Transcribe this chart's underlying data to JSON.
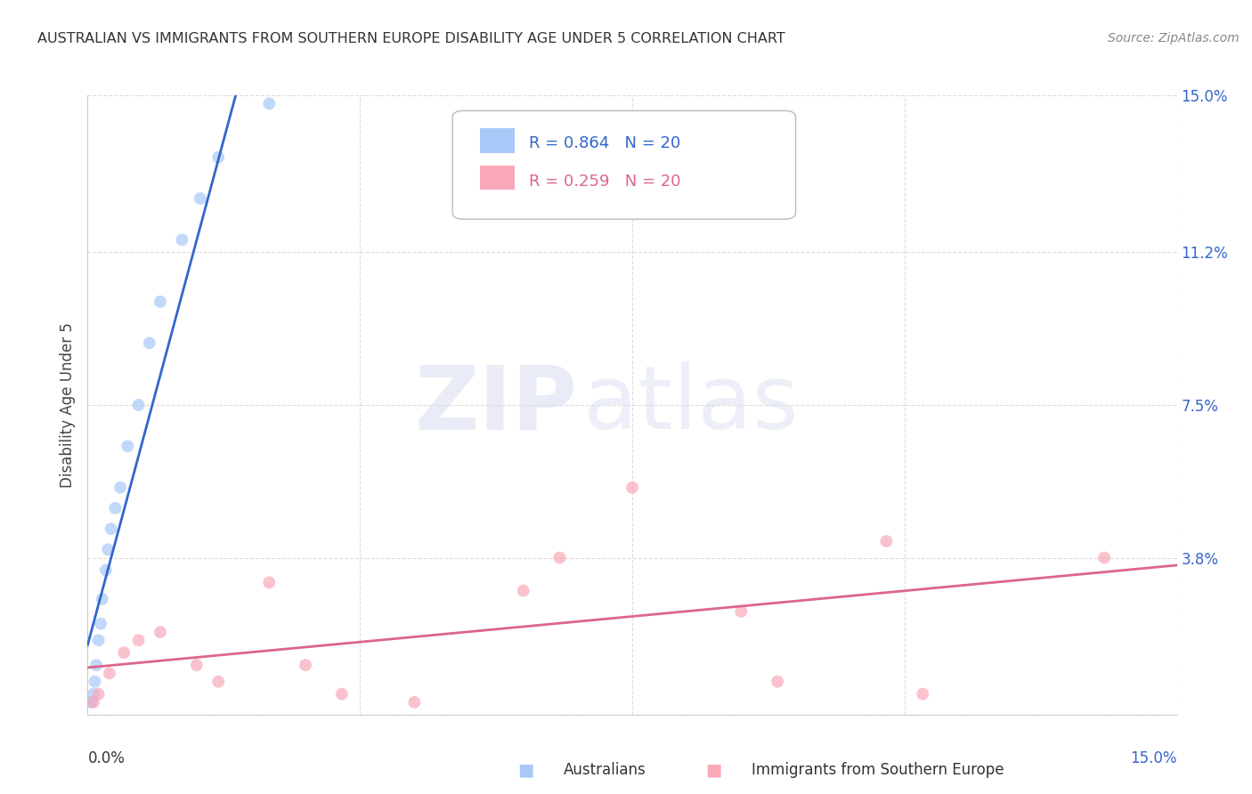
{
  "title": "AUSTRALIAN VS IMMIGRANTS FROM SOUTHERN EUROPE DISABILITY AGE UNDER 5 CORRELATION CHART",
  "source": "Source: ZipAtlas.com",
  "ylabel": "Disability Age Under 5",
  "watermark_zip": "ZIP",
  "watermark_atlas": "atlas",
  "xlim": [
    0.0,
    15.0
  ],
  "ylim": [
    0.0,
    15.0
  ],
  "yticks": [
    0.0,
    3.8,
    7.5,
    11.2,
    15.0
  ],
  "ytick_labels": [
    "",
    "3.8%",
    "7.5%",
    "11.2%",
    "15.0%"
  ],
  "xtick_vals": [
    0.0,
    3.75,
    7.5,
    11.25,
    15.0
  ],
  "grid_color": "#dddddd",
  "background_color": "#ffffff",
  "australians_color": "#a8c8f8",
  "immigrants_color": "#f8a8b8",
  "trendline_aus_color": "#3366cc",
  "trendline_imm_color": "#dd6688",
  "legend_aus_text": "R = 0.864   N = 20",
  "legend_imm_text": "R = 0.259   N = 20",
  "legend_aus_color": "#3366cc",
  "legend_imm_color": "#dd6688",
  "aus_x": [
    0.05,
    0.08,
    0.1,
    0.12,
    0.15,
    0.18,
    0.2,
    0.25,
    0.28,
    0.32,
    0.38,
    0.45,
    0.55,
    0.7,
    0.85,
    1.0,
    1.3,
    1.55,
    1.8,
    2.5
  ],
  "aus_y": [
    0.3,
    0.5,
    0.8,
    1.2,
    1.8,
    2.2,
    2.8,
    3.5,
    4.0,
    4.5,
    5.0,
    5.5,
    6.5,
    7.5,
    9.0,
    10.0,
    11.5,
    12.5,
    13.5,
    14.8
  ],
  "imm_x": [
    0.08,
    0.15,
    0.3,
    0.5,
    0.7,
    1.0,
    1.5,
    1.8,
    2.5,
    3.0,
    3.5,
    4.5,
    6.0,
    6.5,
    7.5,
    9.0,
    9.5,
    11.0,
    11.5,
    14.0
  ],
  "imm_y": [
    0.3,
    0.5,
    1.0,
    1.5,
    1.8,
    2.0,
    1.2,
    0.8,
    3.2,
    1.2,
    0.5,
    0.3,
    3.0,
    3.8,
    5.5,
    2.5,
    0.8,
    4.2,
    0.5,
    3.8
  ],
  "marker_size": 100,
  "marker_alpha": 0.7
}
